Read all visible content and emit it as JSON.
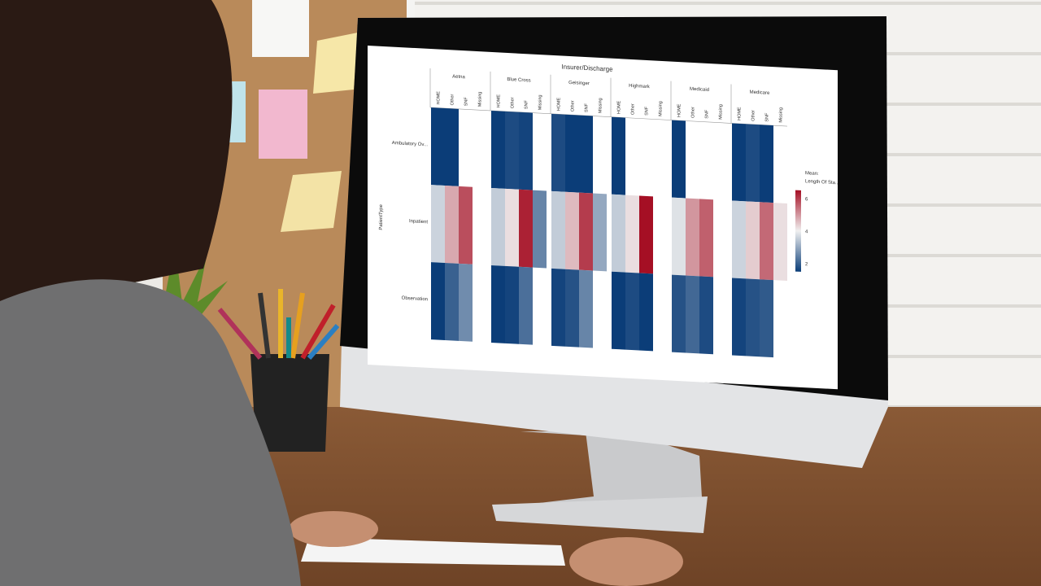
{
  "chart_data": {
    "type": "heatmap",
    "title": "Insurer/Discharge",
    "ylabel": "PatientType",
    "groups": [
      "Aetna",
      "Blue Cross",
      "Geisinger",
      "Highmark",
      "Medicaid",
      "Medicare"
    ],
    "subcategories": [
      "HOME",
      "Other",
      "SNF",
      "Missing"
    ],
    "rows": [
      "Ambulatory Ov...",
      "Inpatient",
      "Observation"
    ],
    "values": [
      [
        [
          1.5,
          1.5,
          null,
          null
        ],
        [
          1.5,
          1.7,
          1.6,
          null
        ],
        [
          1.7,
          1.5,
          1.5,
          null
        ],
        [
          1.5,
          null,
          null,
          null
        ],
        [
          1.5,
          null,
          null,
          null
        ],
        [
          1.5,
          1.7,
          1.5,
          null
        ]
      ],
      [
        [
          3.6,
          4.8,
          5.8,
          null
        ],
        [
          3.5,
          4.2,
          6.3,
          2.5
        ],
        [
          3.5,
          4.6,
          6.0,
          3.0
        ],
        [
          3.5,
          4.2,
          6.5,
          null
        ],
        [
          3.8,
          5.0,
          5.6,
          null
        ],
        [
          3.6,
          4.4,
          5.5,
          4.2
        ]
      ],
      [
        [
          1.5,
          2.0,
          2.6,
          null
        ],
        [
          1.5,
          1.6,
          2.2,
          null
        ],
        [
          1.6,
          1.8,
          2.5,
          null
        ],
        [
          1.5,
          1.7,
          1.4,
          null
        ],
        [
          1.8,
          2.1,
          1.7,
          null
        ],
        [
          1.6,
          1.8,
          1.9,
          null
        ]
      ]
    ],
    "legend": {
      "title_line1": "Mean:",
      "title_line2": "Length Of Sta...",
      "ticks": [
        2,
        4,
        6
      ],
      "range": [
        1.5,
        6.5
      ],
      "placement": "right"
    },
    "colors": {
      "low": "#0b3d78",
      "mid": "#f0f0f0",
      "high": "#a50f24"
    }
  }
}
